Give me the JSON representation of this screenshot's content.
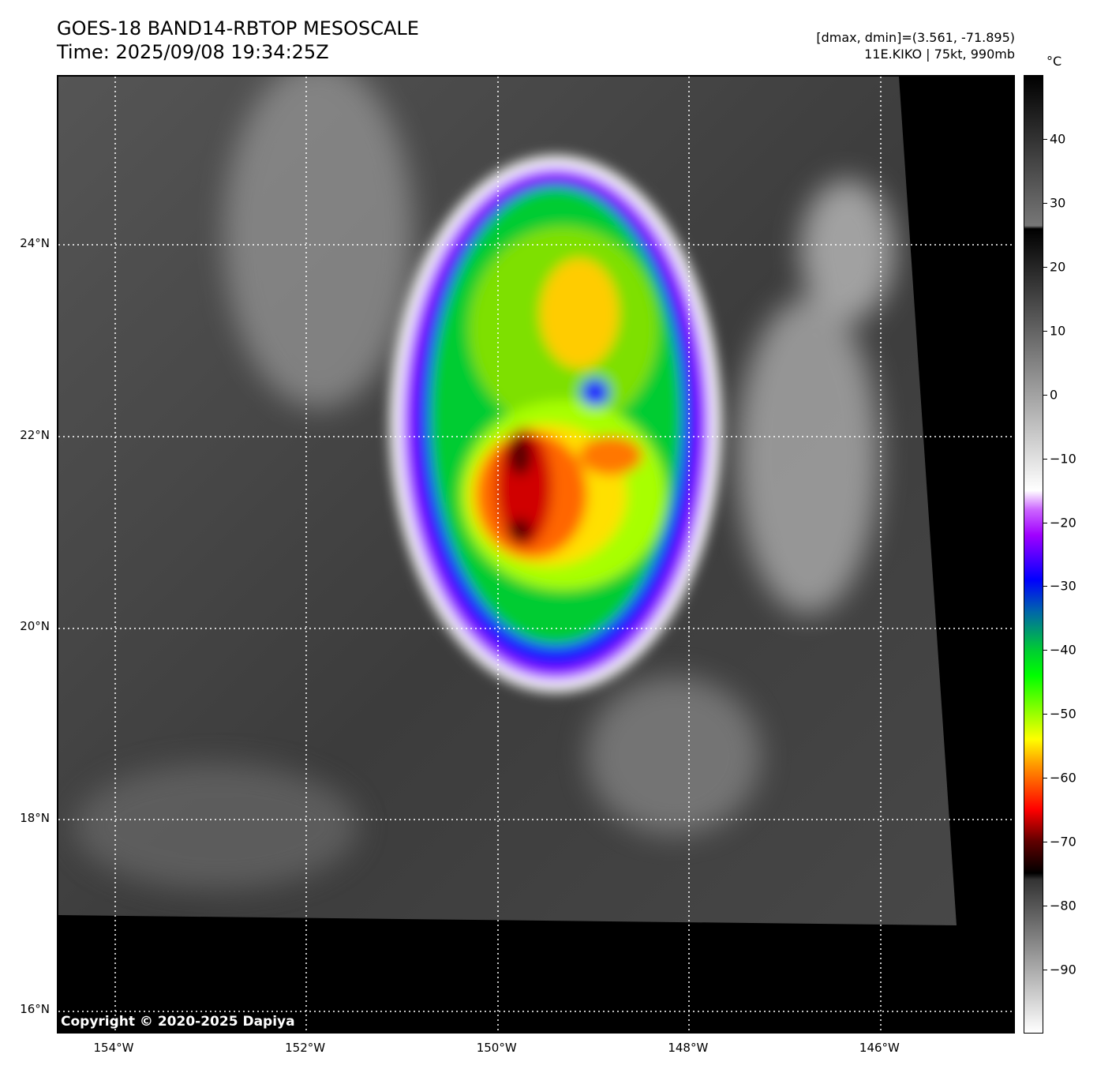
{
  "header": {
    "title": "GOES-18 BAND14-RBTOP MESOSCALE",
    "time": "Time: 2025/09/08 19:34:25Z",
    "range": "[dmax, dmin]=(3.561, -71.895)",
    "storm": "11E.KIKO | 75kt, 990mb"
  },
  "map": {
    "lat_labels": [
      "24°N",
      "22°N",
      "20°N",
      "18°N",
      "16°N"
    ],
    "lat_values": [
      24,
      22,
      20,
      18,
      16
    ],
    "lon_labels": [
      "154°W",
      "152°W",
      "150°W",
      "148°W",
      "146°W"
    ],
    "lon_values": [
      -154,
      -152,
      -150,
      -148,
      -146
    ],
    "copyright": "Copyright © 2020-2025 Dapiya"
  },
  "colorbar": {
    "unit": "°C",
    "min": -100,
    "max": 50,
    "ticks": [
      "40",
      "30",
      "20",
      "10",
      "0",
      "−10",
      "−20",
      "−30",
      "−40",
      "−50",
      "−60",
      "−70",
      "−80",
      "−90"
    ],
    "tick_values": [
      40,
      30,
      20,
      10,
      0,
      -10,
      -20,
      -30,
      -40,
      -50,
      -60,
      -70,
      -80,
      -90
    ]
  }
}
